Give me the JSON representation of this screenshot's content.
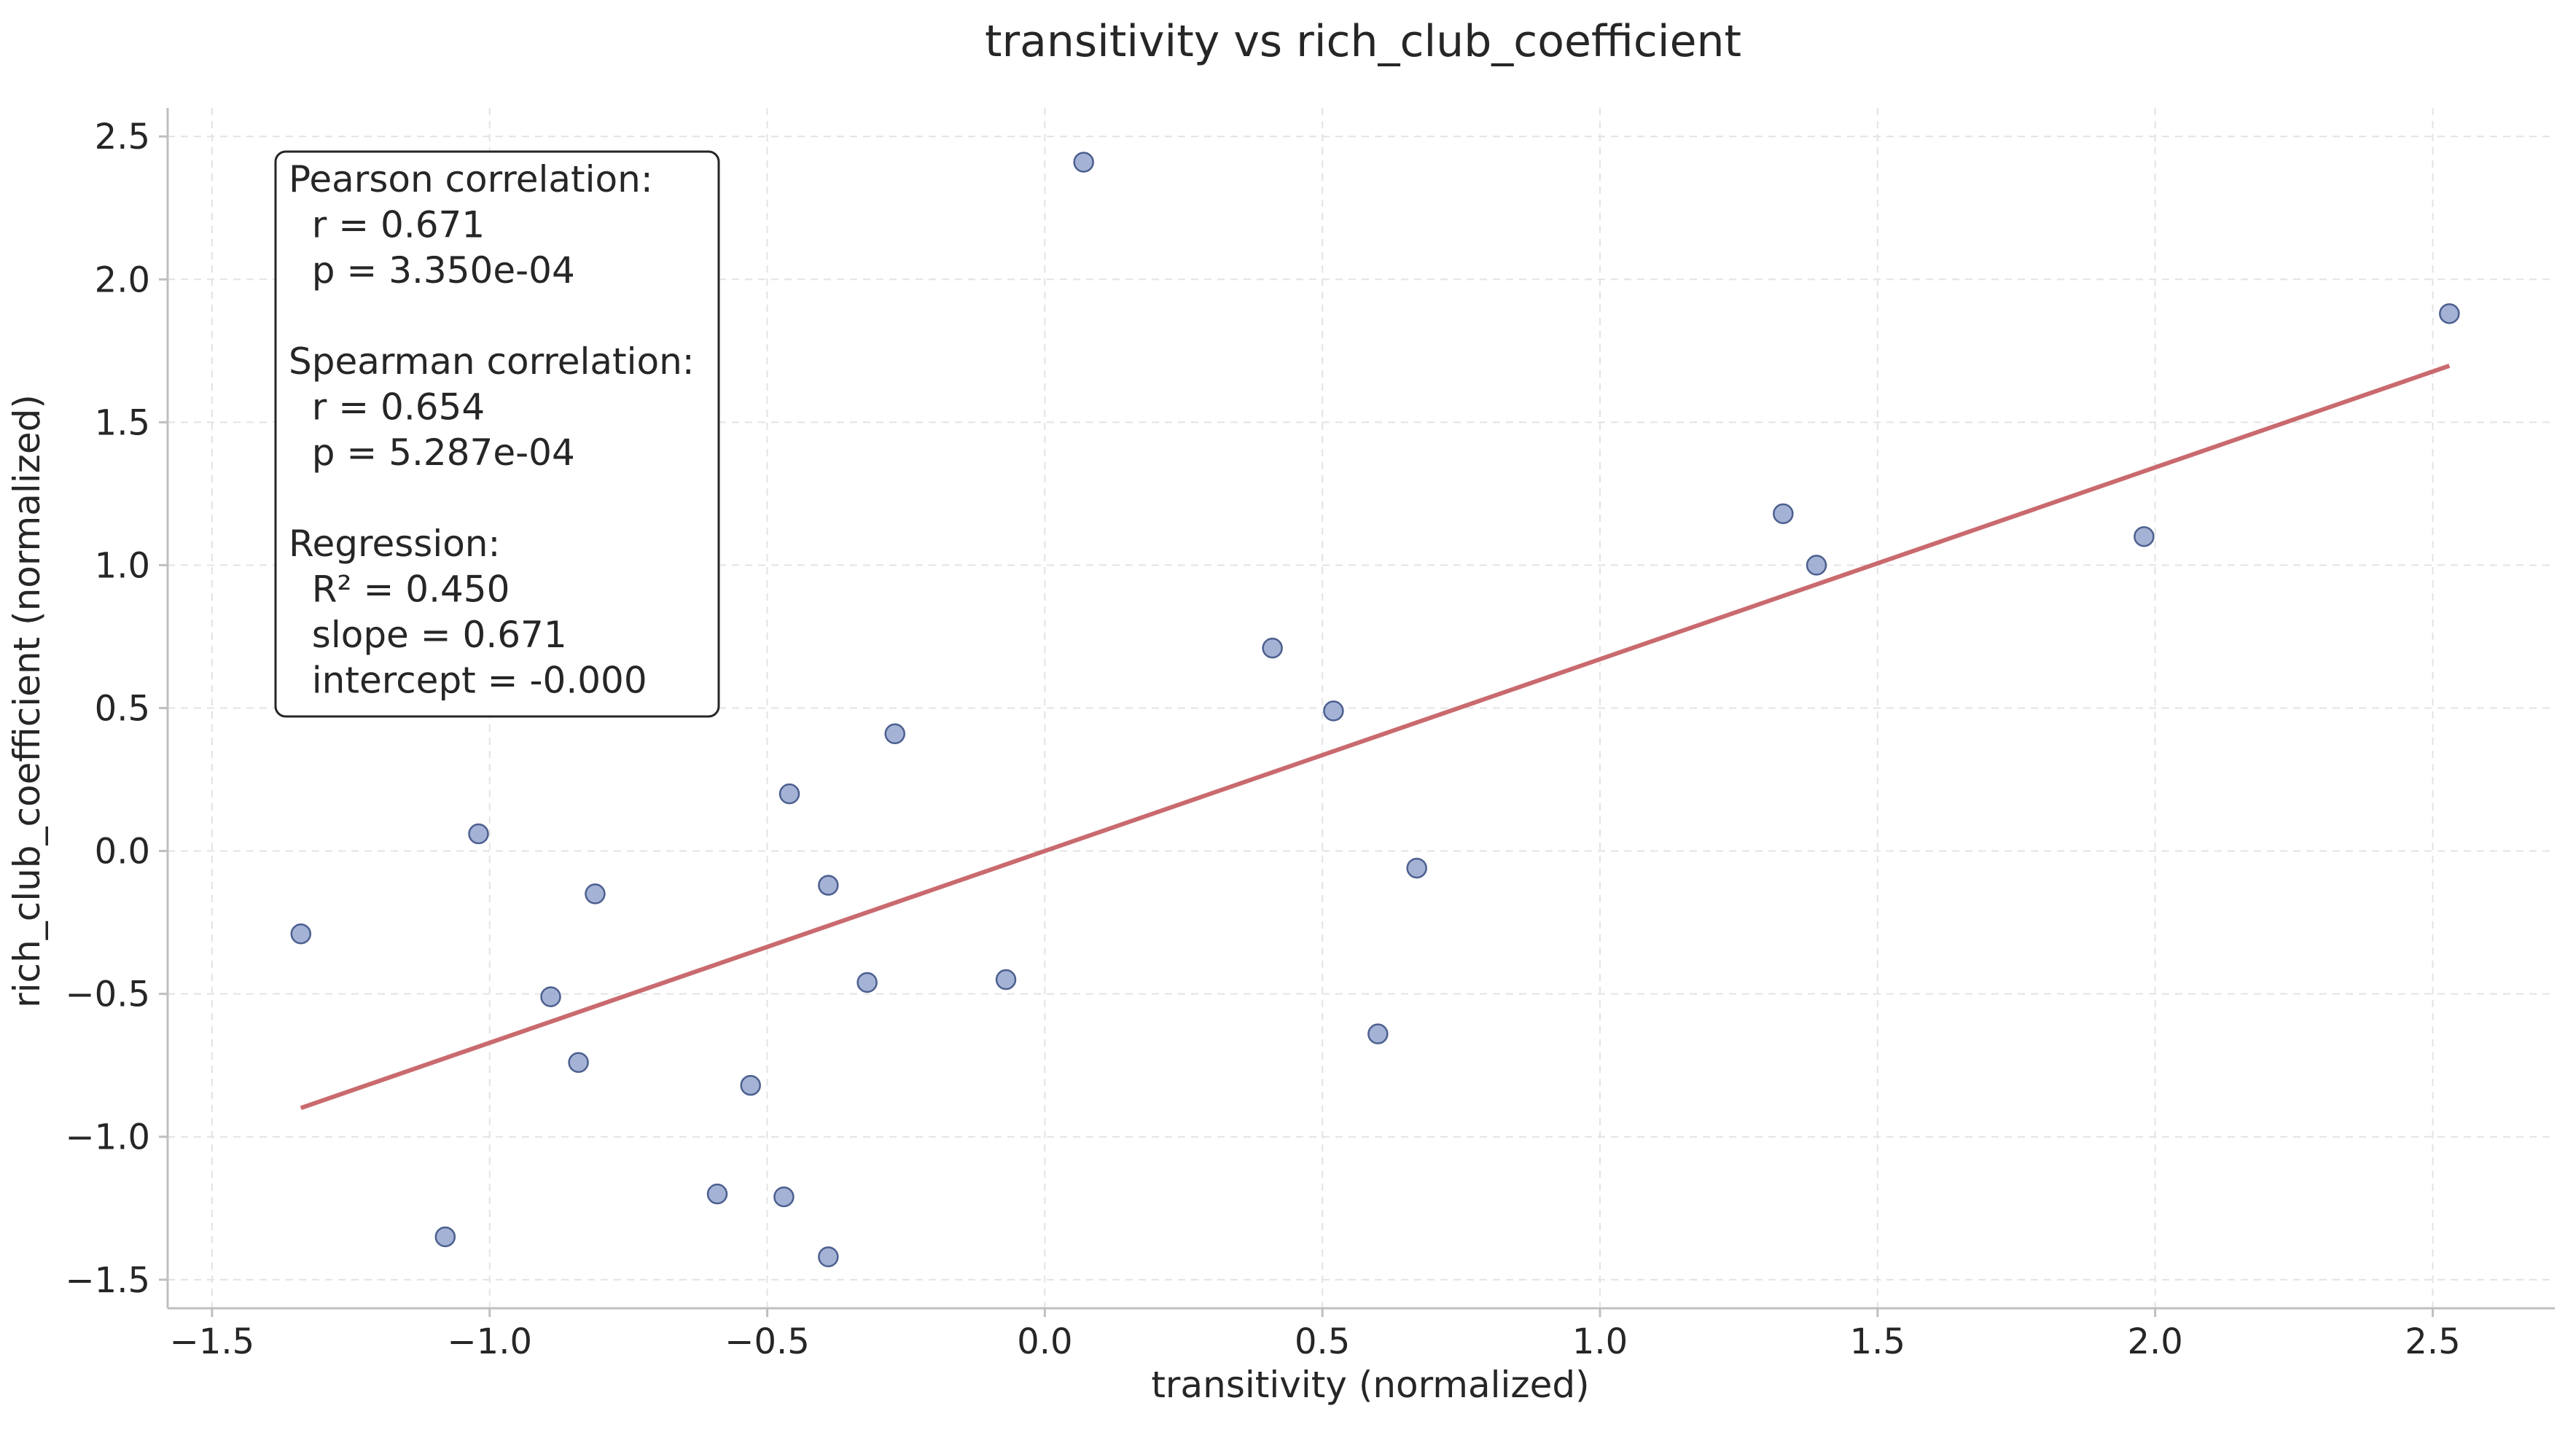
{
  "chart_data": {
    "type": "scatter",
    "title": "transitivity vs rich_club_coefficient",
    "xlabel": "transitivity (normalized)",
    "ylabel": "rich_club_coefficient (normalized)",
    "xlim": [
      -1.58,
      2.72
    ],
    "ylim": [
      -1.6,
      2.6
    ],
    "xticks": [
      -1.5,
      -1.0,
      -0.5,
      0.0,
      0.5,
      1.0,
      1.5,
      2.0,
      2.5
    ],
    "xtick_labels": [
      "−1.5",
      "−1.0",
      "−0.5",
      "0.0",
      "0.5",
      "1.0",
      "1.5",
      "2.0",
      "2.5"
    ],
    "yticks": [
      -1.5,
      -1.0,
      -0.5,
      0.0,
      0.5,
      1.0,
      1.5,
      2.0,
      2.5
    ],
    "ytick_labels": [
      "−1.5",
      "−1.0",
      "−0.5",
      "0.0",
      "0.5",
      "1.0",
      "1.5",
      "2.0",
      "2.5"
    ],
    "grid": true,
    "points": [
      {
        "x": -1.34,
        "y": -0.29
      },
      {
        "x": -1.08,
        "y": -1.35
      },
      {
        "x": -1.02,
        "y": 0.06
      },
      {
        "x": -0.89,
        "y": -0.51
      },
      {
        "x": -0.84,
        "y": -0.74
      },
      {
        "x": -0.81,
        "y": -0.15
      },
      {
        "x": -0.59,
        "y": -1.2
      },
      {
        "x": -0.53,
        "y": -0.82
      },
      {
        "x": -0.47,
        "y": -1.21
      },
      {
        "x": -0.46,
        "y": 0.2
      },
      {
        "x": -0.39,
        "y": -1.42
      },
      {
        "x": -0.39,
        "y": -0.12
      },
      {
        "x": -0.32,
        "y": -0.46
      },
      {
        "x": -0.27,
        "y": 0.41
      },
      {
        "x": -0.07,
        "y": -0.45
      },
      {
        "x": 0.07,
        "y": 2.41
      },
      {
        "x": 0.41,
        "y": 0.71
      },
      {
        "x": 0.52,
        "y": 0.49
      },
      {
        "x": 0.6,
        "y": -0.64
      },
      {
        "x": 0.67,
        "y": -0.06
      },
      {
        "x": 1.33,
        "y": 1.18
      },
      {
        "x": 1.39,
        "y": 1.0
      },
      {
        "x": 1.98,
        "y": 1.1
      },
      {
        "x": 2.53,
        "y": 1.88
      }
    ],
    "regression": {
      "x0": -1.34,
      "x1": 2.53,
      "slope": 0.671,
      "intercept": -0.0
    },
    "stats_lines": [
      "Pearson correlation:",
      "  r = 0.671",
      "  p = 3.350e-04",
      "",
      "Spearman correlation:",
      "  r = 0.654",
      "  p = 5.287e-04",
      "",
      "Regression:",
      "  R² = 0.450",
      "  slope = 0.671",
      "  intercept = -0.000"
    ],
    "colors": {
      "point": "#8da0cb",
      "point_edge": "#4c5f8f",
      "fit": "#c96a6e"
    }
  }
}
